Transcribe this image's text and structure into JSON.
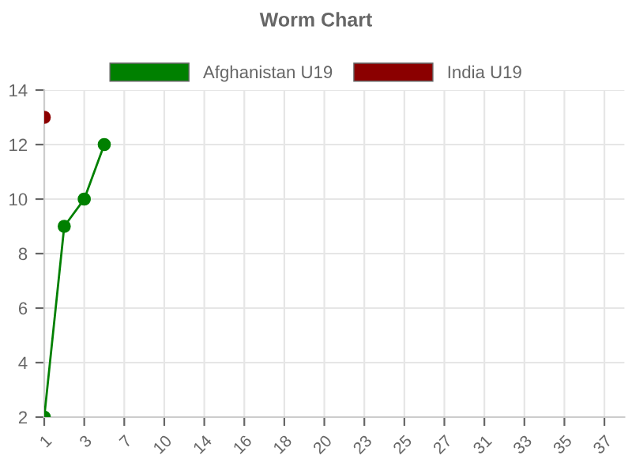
{
  "chart_data": {
    "type": "line",
    "title": "Worm Chart",
    "categories": [
      "1",
      null,
      "3",
      null,
      "7",
      null,
      "10",
      null,
      "14",
      null,
      "16",
      null,
      "18",
      null,
      "20",
      null,
      "23",
      null,
      "25",
      null,
      "27",
      null,
      "31",
      null,
      "33",
      null,
      "35",
      null,
      "37",
      null
    ],
    "series": [
      {
        "name": "Afghanistan U19",
        "color": "#008000",
        "values": [
          2,
          9,
          10,
          12,
          null,
          null,
          null,
          null,
          null,
          null,
          null,
          null,
          null,
          null,
          null,
          null,
          null,
          null,
          null,
          null,
          null,
          null,
          null,
          null,
          null,
          null,
          null,
          null,
          null,
          null
        ]
      },
      {
        "name": "India U19",
        "color": "#8b0000",
        "values": [
          13,
          null,
          null,
          null,
          null,
          null,
          null,
          null,
          null,
          null,
          null,
          null,
          null,
          null,
          null,
          null,
          null,
          null,
          null,
          null,
          null,
          null,
          null,
          null,
          null,
          null,
          null,
          null,
          null,
          null
        ]
      }
    ],
    "ylim": [
      2,
      14
    ],
    "yticks": [
      2,
      4,
      6,
      8,
      10,
      12,
      14
    ],
    "grid": true,
    "legend": "top",
    "marker": "circle",
    "line_style": "solid"
  }
}
